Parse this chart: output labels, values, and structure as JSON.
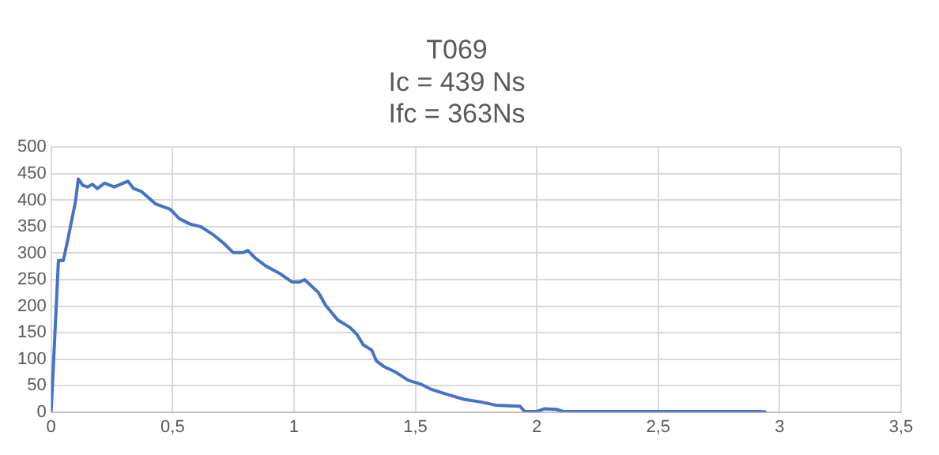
{
  "chart_data": {
    "type": "line",
    "title": "T069\nIc = 439 Ns\nIfc = 363Ns",
    "series": [
      {
        "color": "#4472c4",
        "x": [
          0,
          0.03,
          0.05,
          0.068,
          0.1,
          0.112,
          0.13,
          0.15,
          0.17,
          0.19,
          0.22,
          0.26,
          0.316,
          0.34,
          0.37,
          0.4,
          0.43,
          0.49,
          0.528,
          0.572,
          0.616,
          0.67,
          0.71,
          0.75,
          0.79,
          0.81,
          0.84,
          0.88,
          0.94,
          0.99,
          1.02,
          1.044,
          1.1,
          1.13,
          1.18,
          1.23,
          1.26,
          1.285,
          1.32,
          1.34,
          1.37,
          1.42,
          1.47,
          1.52,
          1.57,
          1.64,
          1.7,
          1.77,
          1.83,
          1.93,
          1.95,
          2.0,
          2.03,
          2.08,
          2.11,
          2.5,
          2.92,
          2.94
        ],
        "values": [
          0,
          286,
          286,
          324,
          397,
          440,
          428,
          425,
          430,
          422,
          432,
          425,
          436,
          422,
          417,
          405,
          393,
          383,
          365,
          355,
          350,
          334,
          319,
          301,
          301,
          305,
          291,
          277,
          262,
          246,
          245,
          250,
          226,
          202,
          174,
          160,
          146,
          127,
          117,
          96,
          86,
          75,
          60,
          53,
          42,
          32,
          24,
          19,
          13,
          11,
          1,
          1,
          6,
          5,
          1,
          1,
          1,
          0
        ]
      }
    ],
    "xlim": [
      0,
      3.5
    ],
    "xticks": [
      0,
      {
        "value": 0.5,
        "label": "0,5"
      },
      1,
      {
        "value": 1.5,
        "label": "1,5"
      },
      2,
      {
        "value": 2.5,
        "label": "2,5"
      },
      3,
      {
        "value": 3.5,
        "label": "3,5"
      }
    ],
    "ylim": [
      0,
      500
    ],
    "yticks": [
      0,
      50,
      100,
      150,
      200,
      250,
      300,
      350,
      400,
      450,
      500
    ],
    "grid": true,
    "marker": "none",
    "line_style": "solid"
  }
}
